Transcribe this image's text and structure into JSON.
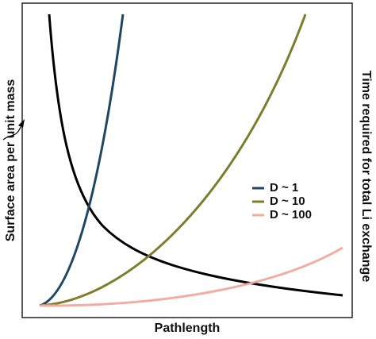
{
  "chart_data": {
    "type": "line",
    "xlabel": "Pathlength",
    "ylabel": "Surface area per unit mass",
    "y2label": "Time required for total Li exchange",
    "series": [
      {
        "name": "D ~ 1",
        "color": "#1f4763"
      },
      {
        "name": "D ~ 10",
        "color": "#7d7d2c"
      },
      {
        "name": "D ~ 100",
        "color": "#f2aca2"
      }
    ]
  }
}
